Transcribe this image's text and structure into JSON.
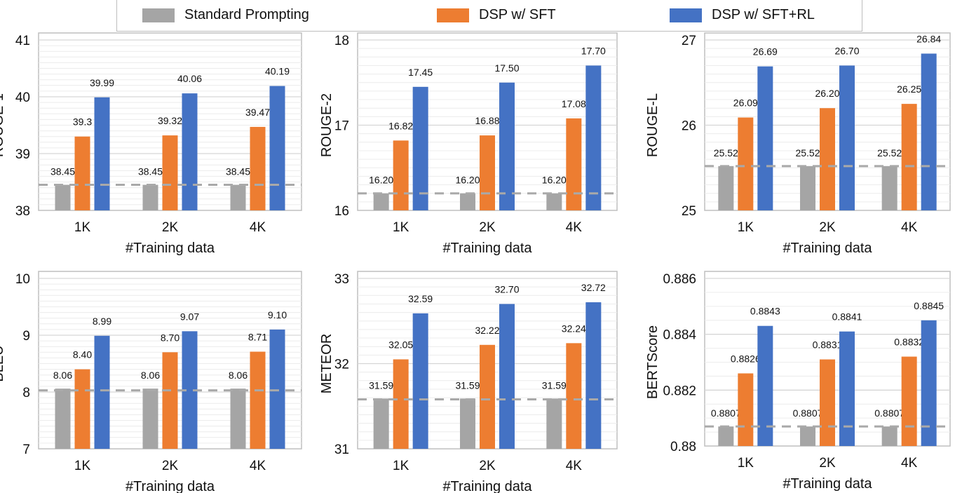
{
  "legend": [
    {
      "name": "Standard Prompting",
      "color": "#a5a5a5"
    },
    {
      "name": "DSP w/ SFT",
      "color": "#ed7d31"
    },
    {
      "name": "DSP w/ SFT+RL",
      "color": "#4472c4"
    }
  ],
  "chart_data": [
    {
      "type": "bar",
      "ylabel": "ROUGE-1",
      "xlabel": "#Training data",
      "categories": [
        "1K",
        "2K",
        "4K"
      ],
      "ylim": [
        38,
        41
      ],
      "yticks": [
        "38",
        "39",
        "40",
        "41"
      ],
      "baseline": 38.45,
      "series": [
        {
          "name": "Standard Prompting",
          "values": [
            38.45,
            38.45,
            38.45
          ],
          "labels": [
            "38.45",
            "38.45",
            "38.45"
          ]
        },
        {
          "name": "DSP w/ SFT",
          "values": [
            39.3,
            39.32,
            39.47
          ],
          "labels": [
            "39.3",
            "39.32",
            "39.47"
          ]
        },
        {
          "name": "DSP w/ SFT+RL",
          "values": [
            39.99,
            40.06,
            40.19
          ],
          "labels": [
            "39.99",
            "40.06",
            "40.19"
          ]
        }
      ]
    },
    {
      "type": "bar",
      "ylabel": "ROUGE-2",
      "xlabel": "#Training data",
      "categories": [
        "1K",
        "2K",
        "4K"
      ],
      "ylim": [
        16,
        18
      ],
      "yticks": [
        "16",
        "17",
        "18"
      ],
      "baseline": 16.2,
      "series": [
        {
          "name": "Standard Prompting",
          "values": [
            16.2,
            16.2,
            16.2
          ],
          "labels": [
            "16.20",
            "16.20",
            "16.20"
          ]
        },
        {
          "name": "DSP w/ SFT",
          "values": [
            16.82,
            16.88,
            17.08
          ],
          "labels": [
            "16.82",
            "16.88",
            "17.08"
          ]
        },
        {
          "name": "DSP w/ SFT+RL",
          "values": [
            17.45,
            17.5,
            17.7
          ],
          "labels": [
            "17.45",
            "17.50",
            "17.70"
          ]
        }
      ]
    },
    {
      "type": "bar",
      "ylabel": "ROUGE-L",
      "xlabel": "#Training data",
      "categories": [
        "1K",
        "2K",
        "4K"
      ],
      "ylim": [
        25,
        27
      ],
      "yticks": [
        "25",
        "26",
        "27"
      ],
      "baseline": 25.52,
      "series": [
        {
          "name": "Standard Prompting",
          "values": [
            25.52,
            25.52,
            25.52
          ],
          "labels": [
            "25.52",
            "25.52",
            "25.52"
          ]
        },
        {
          "name": "DSP w/ SFT",
          "values": [
            26.09,
            26.2,
            26.25
          ],
          "labels": [
            "26.09",
            "26.20",
            "26.25"
          ]
        },
        {
          "name": "DSP w/ SFT+RL",
          "values": [
            26.69,
            26.7,
            26.84
          ],
          "labels": [
            "26.69",
            "26.70",
            "26.84"
          ]
        }
      ]
    },
    {
      "type": "bar",
      "ylabel": "BLEU",
      "xlabel": "#Training data",
      "categories": [
        "1K",
        "2K",
        "4K"
      ],
      "ylim": [
        7,
        10
      ],
      "yticks": [
        "7",
        "8",
        "9",
        "10"
      ],
      "baseline": 8.03,
      "series": [
        {
          "name": "Standard Prompting",
          "values": [
            8.06,
            8.06,
            8.06
          ],
          "labels": [
            "8.06",
            "8.06",
            "8.06"
          ]
        },
        {
          "name": "DSP w/ SFT",
          "values": [
            8.4,
            8.7,
            8.71
          ],
          "labels": [
            "8.40",
            "8.70",
            "8.71"
          ]
        },
        {
          "name": "DSP w/ SFT+RL",
          "values": [
            8.99,
            9.07,
            9.1
          ],
          "labels": [
            "8.99",
            "9.07",
            "9.10"
          ]
        }
      ]
    },
    {
      "type": "bar",
      "ylabel": "METEOR",
      "xlabel": "#Training data",
      "categories": [
        "1K",
        "2K",
        "4K"
      ],
      "ylim": [
        31,
        33
      ],
      "yticks": [
        "31",
        "32",
        "33"
      ],
      "baseline": 31.58,
      "series": [
        {
          "name": "Standard Prompting",
          "values": [
            31.59,
            31.59,
            31.59
          ],
          "labels": [
            "31.59",
            "31.59",
            "31.59"
          ]
        },
        {
          "name": "DSP w/ SFT",
          "values": [
            32.05,
            32.22,
            32.24
          ],
          "labels": [
            "32.05",
            "32.22",
            "32.24"
          ]
        },
        {
          "name": "DSP w/ SFT+RL",
          "values": [
            32.59,
            32.7,
            32.72
          ],
          "labels": [
            "32.59",
            "32.70",
            "32.72"
          ]
        }
      ]
    },
    {
      "type": "bar",
      "ylabel": "BERTScore",
      "xlabel": "#Training data",
      "categories": [
        "1K",
        "2K",
        "4K"
      ],
      "ylim": [
        0.88,
        0.886
      ],
      "yticks": [
        "0.88",
        "0.882",
        "0.884",
        "0.886"
      ],
      "baseline": 0.8807,
      "series": [
        {
          "name": "Standard Prompting",
          "values": [
            0.8807,
            0.8807,
            0.8807
          ],
          "labels": [
            "0.8807",
            "0.8807",
            "0.8807"
          ]
        },
        {
          "name": "DSP w/ SFT",
          "values": [
            0.8826,
            0.8831,
            0.8832
          ],
          "labels": [
            "0.8826",
            "0.8831",
            "0.8832"
          ]
        },
        {
          "name": "DSP w/ SFT+RL",
          "values": [
            0.8843,
            0.8841,
            0.8845
          ],
          "labels": [
            "0.8843",
            "0.8841",
            "0.8845"
          ]
        }
      ]
    }
  ]
}
